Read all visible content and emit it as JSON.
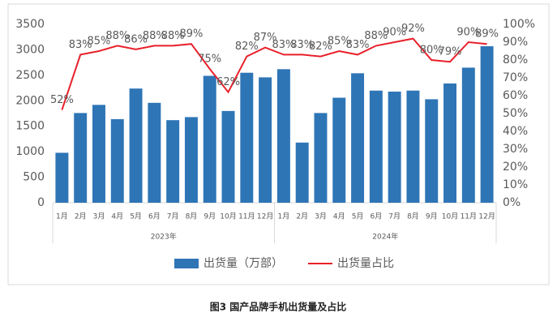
{
  "chart_data": {
    "type": "bar_line",
    "caption": "图3 国产品牌手机出货量及占比",
    "category_groups": [
      {
        "name": "2023年",
        "categories": [
          "1月",
          "2月",
          "3月",
          "4月",
          "5月",
          "6月",
          "7月",
          "8月",
          "9月",
          "10月",
          "11月",
          "12月"
        ]
      },
      {
        "name": "2024年",
        "categories": [
          "1月",
          "2月",
          "3月",
          "4月",
          "5月",
          "6月",
          "7月",
          "8月",
          "9月",
          "10月",
          "11月",
          "12月"
        ]
      }
    ],
    "series": [
      {
        "name": "出货量（万部）",
        "type": "bar",
        "color": "#2e75b6",
        "values": [
          980,
          1760,
          1920,
          1640,
          2240,
          1960,
          1620,
          1680,
          2490,
          1800,
          2550,
          2460,
          2620,
          1180,
          1760,
          2060,
          2540,
          2200,
          2180,
          2200,
          2030,
          2340,
          2650,
          3070
        ]
      },
      {
        "name": "出货量占比",
        "type": "line",
        "axis": "y2",
        "color": "#e8202a",
        "values": [
          52,
          83,
          85,
          88,
          86,
          88,
          88,
          89,
          75,
          62,
          82,
          87,
          83,
          83,
          82,
          85,
          83,
          88,
          90,
          92,
          80,
          79,
          90,
          89
        ],
        "value_labels": [
          "52%",
          "83%",
          "85%",
          "88%",
          "86%",
          "88%",
          "88%",
          "89%",
          "75%",
          "62%",
          "82%",
          "87%",
          "83%",
          "83%",
          "82%",
          "85%",
          "83%",
          "88%",
          "90%",
          "92%",
          "80%",
          "79%",
          "90%",
          "89%"
        ]
      }
    ],
    "ylim": [
      0,
      3500
    ],
    "yticks": [
      0,
      500,
      1000,
      1500,
      2000,
      2500,
      3000,
      3500
    ],
    "y2lim": [
      0,
      100
    ],
    "y2ticks": [
      {
        "value": 0,
        "label": "0%"
      },
      {
        "value": 10,
        "label": "10%"
      },
      {
        "value": 20,
        "label": "20%"
      },
      {
        "value": 30,
        "label": "30%"
      },
      {
        "value": 40,
        "label": "40%"
      },
      {
        "value": 50,
        "label": "50%"
      },
      {
        "value": 60,
        "label": "60%"
      },
      {
        "value": 70,
        "label": "70%"
      },
      {
        "value": 80,
        "label": "80%"
      },
      {
        "value": 90,
        "label": "90%"
      },
      {
        "value": 100,
        "label": "100%"
      }
    ],
    "legend": "bottom"
  }
}
